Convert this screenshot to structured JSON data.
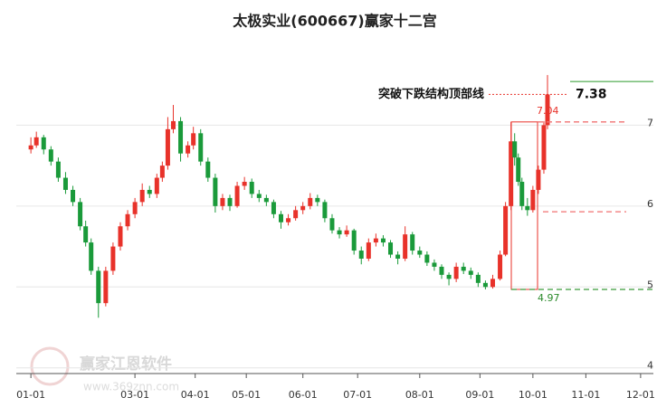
{
  "chart_data": {
    "type": "candlestick",
    "title": "太极实业(600667)赢家十二宫",
    "x": [
      0,
      3,
      7,
      11,
      15,
      19,
      23,
      27,
      30,
      33,
      37,
      41,
      45,
      49,
      53,
      57,
      61,
      65,
      69,
      72,
      75,
      78,
      82,
      86,
      89,
      93,
      97,
      101,
      105,
      109,
      113,
      117,
      121,
      125,
      129,
      133,
      137,
      141,
      145,
      149,
      153,
      157,
      161,
      165,
      169,
      173,
      177,
      181,
      185,
      189,
      193,
      197,
      201,
      205,
      209,
      213,
      217,
      221,
      225,
      229,
      233,
      237,
      241,
      245,
      249,
      253,
      257,
      260,
      263,
      265,
      267,
      269,
      272,
      275,
      278,
      281,
      283
    ],
    "open": [
      6.7,
      6.75,
      6.85,
      6.7,
      6.55,
      6.35,
      6.2,
      6.05,
      5.75,
      5.55,
      5.2,
      4.8,
      5.2,
      5.5,
      5.75,
      5.9,
      6.05,
      6.2,
      6.15,
      6.35,
      6.5,
      6.95,
      7.05,
      6.65,
      6.75,
      6.9,
      6.55,
      6.35,
      6.0,
      6.1,
      6.0,
      6.25,
      6.3,
      6.15,
      6.1,
      6.05,
      5.9,
      5.8,
      5.85,
      5.95,
      6.0,
      6.1,
      6.05,
      5.85,
      5.7,
      5.65,
      5.7,
      5.45,
      5.35,
      5.55,
      5.6,
      5.55,
      5.4,
      5.35,
      5.65,
      5.45,
      5.4,
      5.3,
      5.25,
      5.15,
      5.1,
      5.25,
      5.2,
      5.15,
      5.05,
      5.0,
      5.1,
      5.4,
      6.0,
      6.8,
      6.6,
      6.3,
      6.0,
      5.95,
      6.2,
      6.45,
      7.0
    ],
    "high": [
      6.85,
      6.92,
      6.88,
      6.74,
      6.6,
      6.42,
      6.25,
      6.1,
      5.82,
      5.6,
      5.25,
      5.25,
      5.55,
      5.8,
      5.95,
      6.1,
      6.28,
      6.25,
      6.4,
      6.55,
      7.1,
      7.25,
      7.1,
      6.8,
      6.98,
      6.95,
      6.6,
      6.4,
      6.15,
      6.14,
      6.3,
      6.36,
      6.34,
      6.2,
      6.14,
      6.08,
      5.94,
      5.9,
      6.0,
      6.05,
      6.16,
      6.14,
      6.08,
      5.9,
      5.74,
      5.76,
      5.72,
      5.5,
      5.6,
      5.66,
      5.64,
      5.58,
      5.44,
      5.75,
      5.68,
      5.5,
      5.44,
      5.34,
      5.28,
      5.18,
      5.3,
      5.3,
      5.24,
      5.18,
      5.08,
      5.15,
      5.45,
      6.05,
      7.04,
      6.9,
      6.65,
      6.35,
      6.1,
      6.25,
      6.5,
      7.05,
      7.62
    ],
    "low": [
      6.65,
      6.72,
      6.64,
      6.5,
      6.3,
      6.15,
      6.0,
      5.7,
      5.5,
      5.15,
      4.62,
      4.76,
      5.15,
      5.45,
      5.7,
      5.85,
      6.0,
      6.1,
      6.1,
      6.3,
      6.45,
      6.9,
      6.55,
      6.6,
      6.7,
      6.5,
      6.3,
      5.92,
      5.95,
      5.94,
      5.98,
      6.2,
      6.1,
      6.05,
      6.0,
      5.85,
      5.72,
      5.76,
      5.82,
      5.9,
      5.96,
      6.0,
      5.8,
      5.66,
      5.6,
      5.62,
      5.4,
      5.28,
      5.32,
      5.5,
      5.5,
      5.36,
      5.28,
      5.32,
      5.4,
      5.36,
      5.26,
      5.2,
      5.1,
      5.02,
      5.06,
      5.16,
      5.1,
      5.0,
      4.97,
      4.98,
      5.08,
      5.38,
      5.95,
      6.5,
      6.25,
      5.95,
      5.88,
      5.92,
      6.15,
      6.4,
      6.95
    ],
    "close": [
      6.75,
      6.85,
      6.7,
      6.55,
      6.35,
      6.2,
      6.05,
      5.75,
      5.55,
      5.2,
      4.8,
      5.2,
      5.5,
      5.75,
      5.9,
      6.05,
      6.2,
      6.15,
      6.35,
      6.5,
      6.95,
      7.05,
      6.65,
      6.75,
      6.9,
      6.55,
      6.35,
      6.0,
      6.1,
      6.0,
      6.25,
      6.3,
      6.15,
      6.1,
      6.05,
      5.9,
      5.8,
      5.85,
      5.95,
      6.0,
      6.1,
      6.05,
      5.85,
      5.7,
      5.65,
      5.7,
      5.45,
      5.35,
      5.55,
      5.6,
      5.55,
      5.4,
      5.35,
      5.65,
      5.45,
      5.4,
      5.3,
      5.25,
      5.15,
      5.1,
      5.25,
      5.2,
      5.15,
      5.05,
      5.0,
      5.1,
      5.4,
      6.0,
      6.8,
      6.6,
      6.3,
      6.0,
      5.95,
      6.2,
      6.45,
      7.0,
      7.38
    ],
    "up_color": "#e8322a",
    "down_color": "#1a9a3a",
    "xlim": [
      -8,
      341
    ],
    "xticks": [
      {
        "value": 0,
        "label": "01-01"
      },
      {
        "value": 57,
        "label": "03-01"
      },
      {
        "value": 90,
        "label": "04-01"
      },
      {
        "value": 118,
        "label": "05-01"
      },
      {
        "value": 149,
        "label": "06-01"
      },
      {
        "value": 179,
        "label": "07-01"
      },
      {
        "value": 213,
        "label": "08-01"
      },
      {
        "value": 246,
        "label": "09-01"
      },
      {
        "value": 275,
        "label": "10-01"
      },
      {
        "value": 304,
        "label": "11-01"
      },
      {
        "value": 334,
        "label": "12-01"
      }
    ],
    "ylim": [
      3.93,
      8.1
    ],
    "yticks": [
      4,
      5,
      6,
      7
    ],
    "grid": true,
    "annotation": {
      "text": "突破下跌结构顶部线",
      "value": 7.38
    },
    "box_high": 7.04,
    "box_low": 4.97,
    "mid_level": 5.93,
    "top_level": 7.54,
    "watermark": [
      "赢家江恩软件",
      "www.369znn.com"
    ]
  }
}
